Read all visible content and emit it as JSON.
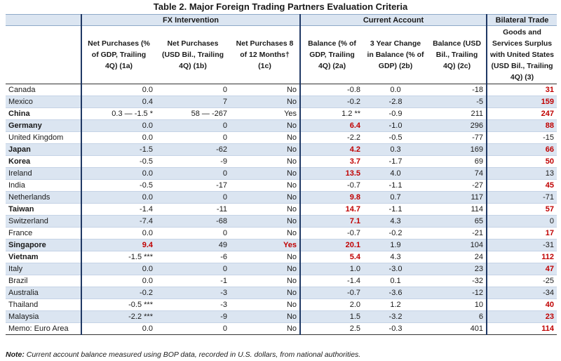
{
  "title": "Table 2. Major Foreign Trading Partners Evaluation Criteria",
  "groups": {
    "fx": "FX Intervention",
    "ca": "Current Account",
    "bt": "Bilateral Trade"
  },
  "columns": [
    "Net Purchases (% of GDP, Trailing 4Q) (1a)",
    "Net Purchases (USD Bil., Trailing 4Q) (1b)",
    "Net Purchases 8 of 12 Months† (1c)",
    "Balance (% of GDP, Trailing 4Q) (2a)",
    "3 Year Change in Balance (% of GDP) (2b)",
    "Balance (USD Bil., Trailing 4Q) (2c)",
    "Goods and Services Surplus with United States (USD Bil., Trailing 4Q) (3)"
  ],
  "rows": [
    {
      "name": "Canada",
      "bold": false,
      "c1a": "0.0",
      "c1b": "0",
      "c1c": "No",
      "c2a": "-0.8",
      "c2b": "0.0",
      "c2c": "-18",
      "c3": "31",
      "r1a": false,
      "r1c": false,
      "r2a": false,
      "r3": true
    },
    {
      "name": "Mexico",
      "bold": false,
      "c1a": "0.4",
      "c1b": "7",
      "c1c": "No",
      "c2a": "-0.2",
      "c2b": "-2.8",
      "c2c": "-5",
      "c3": "159",
      "r1a": false,
      "r1c": false,
      "r2a": false,
      "r3": true
    },
    {
      "name": "China",
      "bold": true,
      "c1a": "0.3 — -1.5 *",
      "c1b": "58 — -267",
      "c1c": "Yes",
      "c2a": "1.2 **",
      "c2b": "-0.9",
      "c2c": "211",
      "c3": "247",
      "r1a": false,
      "r1c": false,
      "r2a": false,
      "r3": true
    },
    {
      "name": "Germany",
      "bold": true,
      "c1a": "0.0",
      "c1b": "0",
      "c1c": "No",
      "c2a": "6.4",
      "c2b": "-1.0",
      "c2c": "296",
      "c3": "88",
      "r1a": false,
      "r1c": false,
      "r2a": true,
      "r3": true
    },
    {
      "name": "United Kingdom",
      "bold": false,
      "c1a": "0.0",
      "c1b": "0",
      "c1c": "No",
      "c2a": "-2.2",
      "c2b": "-0.5",
      "c2c": "-77",
      "c3": "-15",
      "r1a": false,
      "r1c": false,
      "r2a": false,
      "r3": false
    },
    {
      "name": "Japan",
      "bold": true,
      "c1a": "-1.5",
      "c1b": "-62",
      "c1c": "No",
      "c2a": "4.2",
      "c2b": "0.3",
      "c2c": "169",
      "c3": "66",
      "r1a": false,
      "r1c": false,
      "r2a": true,
      "r3": true
    },
    {
      "name": "Korea",
      "bold": true,
      "c1a": "-0.5",
      "c1b": "-9",
      "c1c": "No",
      "c2a": "3.7",
      "c2b": "-1.7",
      "c2c": "69",
      "c3": "50",
      "r1a": false,
      "r1c": false,
      "r2a": true,
      "r3": true
    },
    {
      "name": "Ireland",
      "bold": false,
      "c1a": "0.0",
      "c1b": "0",
      "c1c": "No",
      "c2a": "13.5",
      "c2b": "4.0",
      "c2c": "74",
      "c3": "13",
      "r1a": false,
      "r1c": false,
      "r2a": true,
      "r3": false
    },
    {
      "name": "India",
      "bold": false,
      "c1a": "-0.5",
      "c1b": "-17",
      "c1c": "No",
      "c2a": "-0.7",
      "c2b": "-1.1",
      "c2c": "-27",
      "c3": "45",
      "r1a": false,
      "r1c": false,
      "r2a": false,
      "r3": true
    },
    {
      "name": "Netherlands",
      "bold": false,
      "c1a": "0.0",
      "c1b": "0",
      "c1c": "No",
      "c2a": "9.8",
      "c2b": "0.7",
      "c2c": "117",
      "c3": "-71",
      "r1a": false,
      "r1c": false,
      "r2a": true,
      "r3": false
    },
    {
      "name": "Taiwan",
      "bold": true,
      "c1a": "-1.4",
      "c1b": "-11",
      "c1c": "No",
      "c2a": "14.7",
      "c2b": "-1.1",
      "c2c": "114",
      "c3": "57",
      "r1a": false,
      "r1c": false,
      "r2a": true,
      "r3": true
    },
    {
      "name": "Switzerland",
      "bold": false,
      "c1a": "-7.4",
      "c1b": "-68",
      "c1c": "No",
      "c2a": "7.1",
      "c2b": "4.3",
      "c2c": "65",
      "c3": "0",
      "r1a": false,
      "r1c": false,
      "r2a": true,
      "r3": false
    },
    {
      "name": "France",
      "bold": false,
      "c1a": "0.0",
      "c1b": "0",
      "c1c": "No",
      "c2a": "-0.7",
      "c2b": "-0.2",
      "c2c": "-21",
      "c3": "17",
      "r1a": false,
      "r1c": false,
      "r2a": false,
      "r3": true
    },
    {
      "name": "Singapore",
      "bold": true,
      "c1a": "9.4",
      "c1b": "49",
      "c1c": "Yes",
      "c2a": "20.1",
      "c2b": "1.9",
      "c2c": "104",
      "c3": "-31",
      "r1a": true,
      "r1c": true,
      "r2a": true,
      "r3": false
    },
    {
      "name": "Vietnam",
      "bold": true,
      "c1a": "-1.5 ***",
      "c1b": "-6",
      "c1c": "No",
      "c2a": "5.4",
      "c2b": "4.3",
      "c2c": "24",
      "c3": "112",
      "r1a": false,
      "r1c": false,
      "r2a": true,
      "r3": true
    },
    {
      "name": "Italy",
      "bold": false,
      "c1a": "0.0",
      "c1b": "0",
      "c1c": "No",
      "c2a": "1.0",
      "c2b": "-3.0",
      "c2c": "23",
      "c3": "47",
      "r1a": false,
      "r1c": false,
      "r2a": false,
      "r3": true
    },
    {
      "name": "Brazil",
      "bold": false,
      "c1a": "0.0",
      "c1b": "-1",
      "c1c": "No",
      "c2a": "-1.4",
      "c2b": "0.1",
      "c2c": "-32",
      "c3": "-25",
      "r1a": false,
      "r1c": false,
      "r2a": false,
      "r3": false
    },
    {
      "name": "Australia",
      "bold": false,
      "c1a": "-0.2",
      "c1b": "-3",
      "c1c": "No",
      "c2a": "-0.7",
      "c2b": "-3.6",
      "c2c": "-12",
      "c3": "-34",
      "r1a": false,
      "r1c": false,
      "r2a": false,
      "r3": false
    },
    {
      "name": "Thailand",
      "bold": false,
      "c1a": "-0.5 ***",
      "c1b": "-3",
      "c1c": "No",
      "c2a": "2.0",
      "c2b": "1.2",
      "c2c": "10",
      "c3": "40",
      "r1a": false,
      "r1c": false,
      "r2a": false,
      "r3": true
    },
    {
      "name": "Malaysia",
      "bold": false,
      "c1a": "-2.2 ***",
      "c1b": "-9",
      "c1c": "No",
      "c2a": "1.5",
      "c2b": "-3.2",
      "c2c": "6",
      "c3": "23",
      "r1a": false,
      "r1c": false,
      "r2a": false,
      "r3": true
    },
    {
      "name": "Memo: Euro Area",
      "bold": false,
      "c1a": "0.0",
      "c1b": "0",
      "c1c": "No",
      "c2a": "2.5",
      "c2b": "-0.3",
      "c2c": "401",
      "c3": "114",
      "r1a": false,
      "r1c": false,
      "r2a": false,
      "r3": true
    }
  ],
  "note_label": "Note:",
  "note_text": " Current account balance measured using BOP data, recorded in U.S. dollars, from national authorities.",
  "colors": {
    "red": "#c00000",
    "band": "#dbe5f1",
    "rule": "#1f3864"
  }
}
